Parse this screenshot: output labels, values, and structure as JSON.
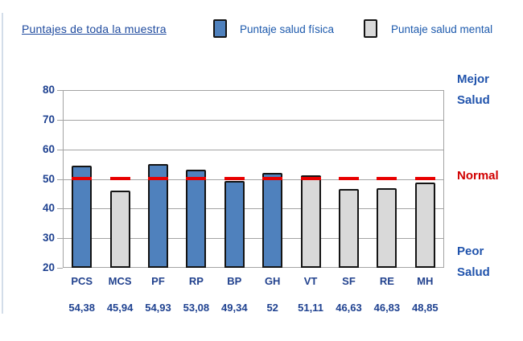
{
  "header": {
    "title": "Puntajes de toda la muestra"
  },
  "legend": [
    {
      "label": "Puntaje salud física",
      "color": "#4f81bd"
    },
    {
      "label": "Puntaje salud mental",
      "color": "#d9d9d9"
    }
  ],
  "right_labels": {
    "better": "Mejor\nSalud",
    "normal": "Normal",
    "worse": "Peor\nSalud"
  },
  "colors": {
    "normal_label": "#d10000",
    "side_label": "#2053ac",
    "reference_dash": "#e80000",
    "grid": "#a3a3a3",
    "bar_outline": "#141414",
    "axis_text": "#1e4190"
  },
  "chart_data": {
    "type": "bar",
    "title": "Puntajes de toda la muestra",
    "categories": [
      "PCS",
      "MCS",
      "PF",
      "RP",
      "BP",
      "GH",
      "VT",
      "SF",
      "RE",
      "MH"
    ],
    "values": [
      54.38,
      45.94,
      54.93,
      53.08,
      49.34,
      52,
      51.11,
      46.63,
      46.83,
      48.85
    ],
    "value_labels": [
      "54,38",
      "45,94",
      "54,93",
      "53,08",
      "49,34",
      "52",
      "51,11",
      "46,63",
      "46,83",
      "48,85"
    ],
    "series": [
      {
        "name": "Puntaje salud física",
        "key": "fisica",
        "color": "#4f81bd",
        "categories": [
          "PCS",
          "PF",
          "RP",
          "BP",
          "GH"
        ]
      },
      {
        "name": "Puntaje salud mental",
        "key": "mental",
        "color": "#d9d9d9",
        "categories": [
          "MCS",
          "VT",
          "SF",
          "RE",
          "MH"
        ]
      }
    ],
    "series_assignment": [
      "fisica",
      "mental",
      "fisica",
      "fisica",
      "fisica",
      "fisica",
      "mental",
      "mental",
      "mental",
      "mental"
    ],
    "bar_colors": {
      "fisica": "#4f81bd",
      "mental": "#d9d9d9"
    },
    "xlabel": "",
    "ylabel": "",
    "ylim": [
      20,
      80
    ],
    "yticks": [
      20,
      30,
      40,
      50,
      60,
      70,
      80
    ],
    "grid": true,
    "legend_position": "top",
    "reference_line": {
      "value": 50,
      "label": "Normal",
      "color": "#e80000",
      "style": "dashed-per-category"
    },
    "annotations": {
      "above": "Mejor Salud",
      "at_reference": "Normal",
      "below": "Peor Salud"
    }
  }
}
